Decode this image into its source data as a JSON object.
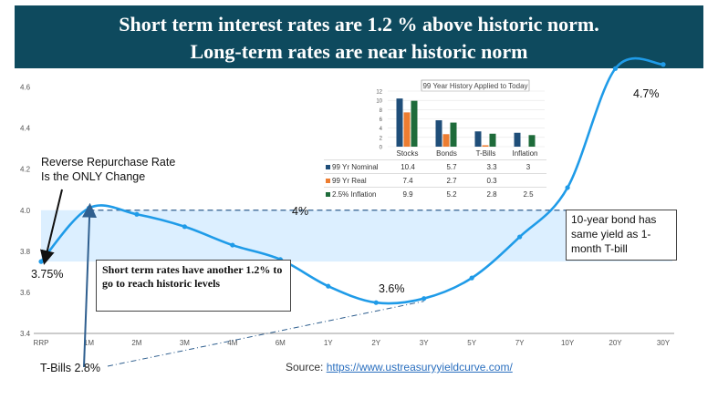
{
  "title": {
    "line1": "Short term interest rates are 1.2 % above historic norm.",
    "line2": "Long-term rates are near historic norm"
  },
  "colors": {
    "banner": "#0e4a5e",
    "line": "#1f9be8",
    "band": "#dcefff",
    "dashed": "#2f5f8f",
    "stocks": "#1f4e79",
    "real": "#ed7d31",
    "inflation": "#1e6b3a"
  },
  "annotations": {
    "reverse_repo_line1": "Reverse Repurchase Rate",
    "reverse_repo_line2": "Is the ONLY Change",
    "rrp_value": "3.75%",
    "four_pct": "4%",
    "short_term_box": "Short term rates have another 1.2% to go to reach historic levels",
    "ten_year_box": "10-year bond has same yield as 1-month T-bill",
    "two_year_value": "3.6%",
    "thirty_year_value": "4.7%",
    "tbills_label": "T-Bills 2.8%",
    "source_prefix": "Source: ",
    "source_link": "https://www.ustreasuryyieldcurve.com/"
  },
  "chart_data": [
    {
      "type": "line",
      "title": "",
      "xlabel": "",
      "ylabel": "",
      "categories": [
        "RRP",
        "1M",
        "2M",
        "3M",
        "4M",
        "6M",
        "1Y",
        "2Y",
        "3Y",
        "5Y",
        "7Y",
        "10Y",
        "20Y",
        "30Y"
      ],
      "series": [
        {
          "values": [
            3.75,
            4.01,
            3.98,
            3.92,
            3.83,
            3.76,
            3.63,
            3.55,
            3.57,
            3.67,
            3.87,
            4.11,
            4.69,
            4.71
          ]
        }
      ],
      "yticks": [
        "3.4",
        "3.6",
        "3.8",
        "4.0",
        "4.2",
        "4.4",
        "4.6"
      ],
      "ylim": [
        3.4,
        4.66
      ],
      "reference_band": [
        3.75,
        4.0
      ],
      "reference_line": 4.0,
      "grid": false
    },
    {
      "type": "bar",
      "title": "99 Year History Applied to Today",
      "categories": [
        "Stocks",
        "Bonds",
        "T-Bills",
        "Inflation"
      ],
      "series": [
        {
          "name": "99 Yr Nominal",
          "values": [
            10.4,
            5.7,
            3.3,
            3
          ]
        },
        {
          "name": "99 Yr Real",
          "values": [
            7.4,
            2.7,
            0.3,
            null
          ]
        },
        {
          "name": "2.5% Inflation",
          "values": [
            9.9,
            5.2,
            2.8,
            2.5
          ]
        }
      ],
      "yticks": [
        "0",
        "2",
        "4",
        "6",
        "8",
        "10",
        "12"
      ],
      "ylim": [
        0,
        12
      ],
      "grid": true
    }
  ]
}
